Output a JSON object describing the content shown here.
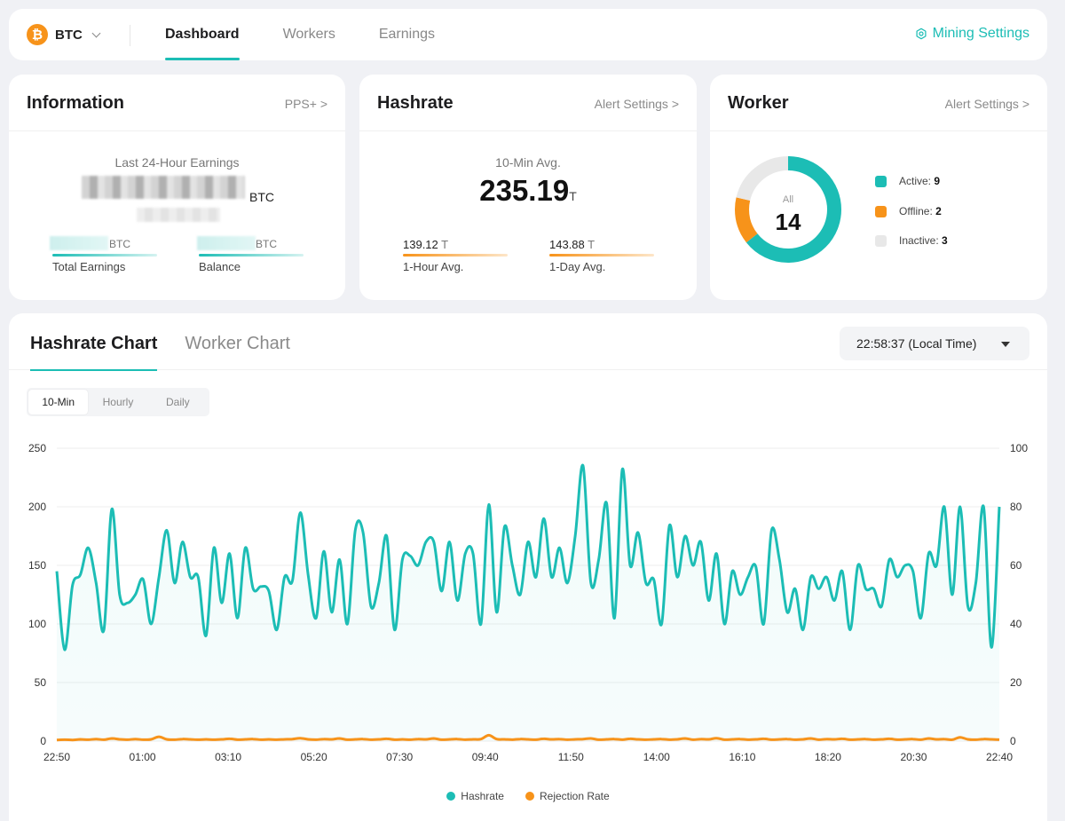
{
  "topbar": {
    "coin": "BTC",
    "coin_logo_glyph": "₿",
    "tabs": [
      "Dashboard",
      "Workers",
      "Earnings"
    ],
    "active_tab": "Dashboard",
    "mining_settings": "Mining Settings",
    "accent": "#1cbdb5"
  },
  "information": {
    "title": "Information",
    "link": "PPS+ >",
    "earnings_label": "Last 24-Hour Earnings",
    "earnings_unit": "BTC",
    "total_unit": "BTC",
    "total_label": "Total Earnings",
    "balance_unit": "BTC",
    "balance_label": "Balance"
  },
  "hashrate": {
    "title": "Hashrate",
    "link": "Alert Settings >",
    "avg10_label": "10-Min Avg.",
    "avg10_value": "235.19",
    "avg10_unit": "T",
    "h1_value": "139.12",
    "h1_unit": "T",
    "h1_label": "1-Hour Avg.",
    "d1_value": "143.88",
    "d1_unit": "T",
    "d1_label": "1-Day Avg."
  },
  "worker": {
    "title": "Worker",
    "link": "Alert Settings >",
    "donut_label": "All",
    "total": "14",
    "active_label": "Active:",
    "active": 9,
    "offline_label": "Offline:",
    "offline": 2,
    "inactive_label": "Inactive:",
    "inactive": 3,
    "colors": {
      "active": "#1cbdb5",
      "offline": "#f7931a",
      "inactive": "#e8e8e8"
    }
  },
  "chart_panel": {
    "tabs": [
      "Hashrate Chart",
      "Worker Chart"
    ],
    "active_tab": "Hashrate Chart",
    "time": "22:58:37 (Local Time)",
    "ranges": [
      "10-Min",
      "Hourly",
      "Daily"
    ],
    "active_range": "10-Min"
  },
  "chart_data": {
    "type": "area",
    "x_ticks": [
      "22:50",
      "01:00",
      "03:10",
      "05:20",
      "07:30",
      "09:40",
      "11:50",
      "14:00",
      "16:10",
      "18:20",
      "20:30",
      "22:40"
    ],
    "ylim_left": [
      0,
      250
    ],
    "yticks_left": [
      0,
      50,
      100,
      150,
      200,
      250
    ],
    "ylim_right": [
      0,
      100
    ],
    "yticks_right": [
      0,
      20,
      40,
      60,
      80,
      100
    ],
    "grid": true,
    "legend_position": "bottom-center",
    "series": [
      {
        "name": "Hashrate",
        "axis": "left",
        "color": "#1cbdb5",
        "values": [
          145,
          78,
          133,
          142,
          165,
          135,
          95,
          198,
          125,
          118,
          125,
          138,
          100,
          140,
          180,
          135,
          170,
          140,
          140,
          90,
          165,
          118,
          160,
          105,
          165,
          130,
          132,
          128,
          95,
          140,
          137,
          195,
          142,
          105,
          162,
          110,
          155,
          100,
          180,
          178,
          115,
          135,
          175,
          95,
          155,
          158,
          150,
          170,
          170,
          128,
          170,
          120,
          160,
          160,
          100,
          202,
          110,
          183,
          150,
          125,
          170,
          140,
          190,
          140,
          165,
          135,
          175,
          235,
          135,
          155,
          203,
          105,
          232,
          150,
          178,
          135,
          138,
          100,
          184,
          140,
          175,
          150,
          170,
          120,
          160,
          100,
          145,
          125,
          140,
          149,
          100,
          180,
          155,
          110,
          130,
          95,
          140,
          130,
          140,
          120,
          145,
          95,
          150,
          130,
          130,
          115,
          155,
          140,
          150,
          145,
          105,
          160,
          150,
          200,
          125,
          200,
          115,
          135,
          200,
          80,
          200
        ]
      },
      {
        "name": "Rejection Rate",
        "axis": "right",
        "color": "#f7931a",
        "values": [
          0.4,
          0.5,
          0.4,
          0.6,
          0.5,
          0.7,
          0.5,
          0.9,
          0.6,
          0.5,
          0.7,
          0.5,
          0.6,
          1.5,
          0.6,
          0.5,
          0.7,
          0.6,
          0.5,
          0.6,
          0.5,
          0.6,
          0.8,
          0.5,
          0.6,
          0.7,
          0.5,
          0.6,
          0.5,
          0.6,
          0.7,
          1.0,
          0.6,
          0.5,
          0.7,
          0.6,
          0.9,
          0.5,
          0.6,
          0.7,
          0.5,
          0.6,
          0.8,
          0.5,
          0.6,
          0.5,
          0.7,
          0.6,
          0.9,
          0.5,
          0.6,
          0.7,
          0.5,
          0.6,
          0.7,
          2.0,
          0.7,
          0.6,
          0.5,
          0.7,
          0.6,
          0.5,
          0.8,
          0.6,
          0.7,
          0.5,
          0.6,
          0.7,
          0.9,
          0.5,
          0.6,
          0.7,
          0.5,
          0.8,
          0.6,
          0.5,
          0.6,
          0.7,
          0.5,
          0.6,
          0.9,
          0.5,
          0.7,
          0.6,
          1.0,
          0.5,
          0.6,
          0.7,
          0.5,
          0.6,
          0.8,
          0.5,
          0.6,
          0.7,
          0.5,
          0.6,
          0.9,
          0.5,
          0.7,
          0.6,
          0.8,
          0.5,
          0.6,
          0.7,
          0.5,
          0.6,
          0.8,
          0.5,
          0.6,
          0.7,
          0.5,
          0.9,
          0.6,
          0.7,
          0.5,
          1.3,
          0.6,
          0.5,
          0.7,
          0.6,
          0.5
        ]
      }
    ]
  }
}
